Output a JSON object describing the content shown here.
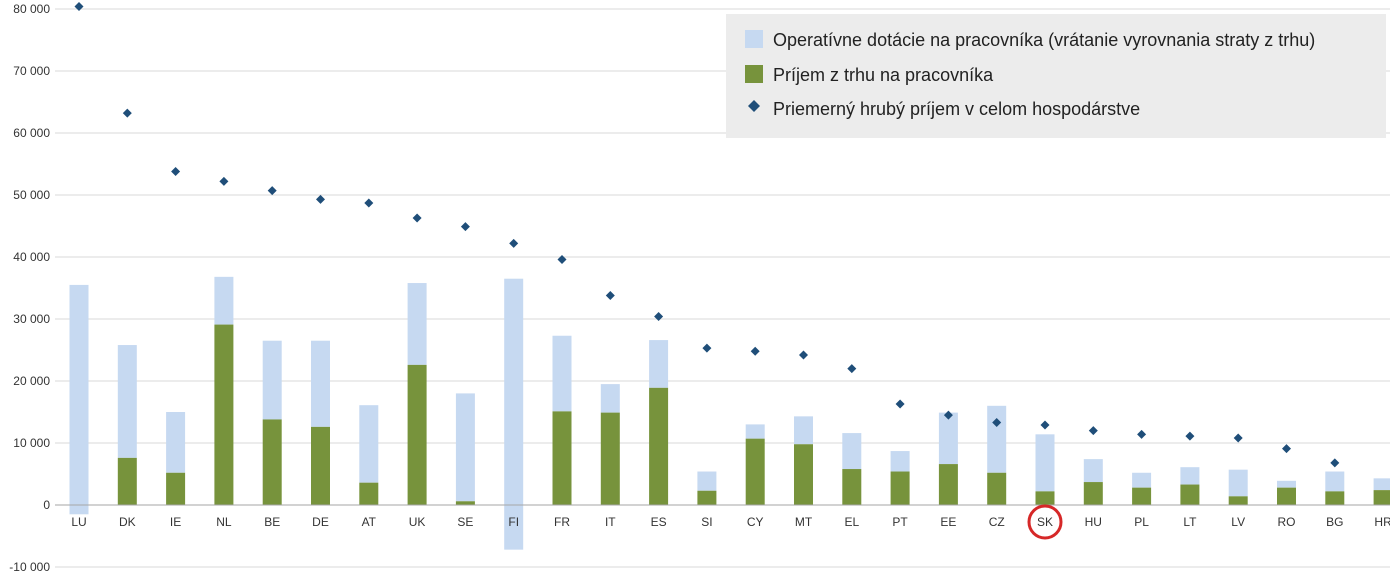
{
  "chart_data": {
    "type": "bar",
    "stacked": true,
    "categories": [
      "LU",
      "DK",
      "IE",
      "NL",
      "BE",
      "DE",
      "AT",
      "UK",
      "SE",
      "FI",
      "FR",
      "IT",
      "ES",
      "SI",
      "CY",
      "MT",
      "EL",
      "PT",
      "EE",
      "CZ",
      "SK",
      "HU",
      "PL",
      "LT",
      "LV",
      "RO",
      "BG",
      "HR"
    ],
    "series": [
      {
        "name": "Príjem z trhu na pracovníka",
        "kind": "bar",
        "color": "#77933c",
        "values": [
          -1500,
          7600,
          5200,
          29100,
          13800,
          12600,
          3600,
          22600,
          600,
          -7200,
          15100,
          14900,
          18900,
          2300,
          10700,
          9800,
          5800,
          5400,
          6600,
          5200,
          2200,
          3700,
          2800,
          3300,
          1400,
          2800,
          2200,
          2400
        ]
      },
      {
        "name": "Operatívne dotácie na pracovníka (vrátanie vyrovnania straty z trhu)",
        "kind": "bar",
        "color": "#c6d9f1",
        "values": [
          35500,
          18200,
          9800,
          7700,
          12700,
          13900,
          12500,
          13200,
          17400,
          36500,
          12200,
          4600,
          7700,
          3100,
          2300,
          4500,
          5800,
          3300,
          8300,
          10800,
          9200,
          3700,
          2400,
          2800,
          4300,
          1100,
          3200,
          1900
        ]
      },
      {
        "name": "Priemerný hrubý príjem v celom hospodárstve",
        "kind": "scatter",
        "marker": "diamond",
        "color": "#1f4e79",
        "values": [
          80400,
          63200,
          53800,
          52200,
          50700,
          49300,
          48700,
          46300,
          44900,
          42200,
          39600,
          33800,
          30400,
          25300,
          24800,
          24200,
          22000,
          16300,
          14500,
          13300,
          12900,
          12000,
          11400,
          11100,
          10800,
          9100,
          6800,
          null
        ]
      }
    ],
    "y_ticks": [
      "80 000",
      "70 000",
      "60 000",
      "50 000",
      "40 000",
      "30 000",
      "20 000",
      "10 000",
      "0",
      "-10 000"
    ],
    "ylim": [
      -10000,
      80000
    ],
    "grid": "horizontal",
    "legend_position": "top-right",
    "highlight": {
      "category": "SK",
      "marker": "red-circle",
      "color": "#d62828"
    }
  }
}
